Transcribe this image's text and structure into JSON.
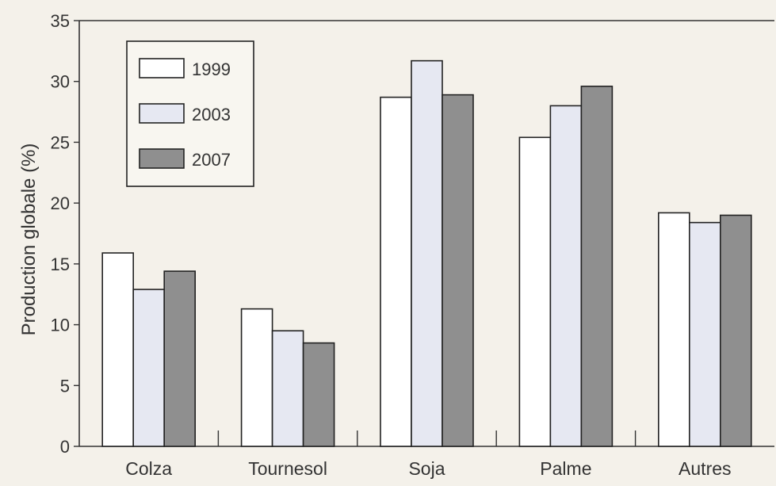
{
  "chart_data": {
    "type": "bar",
    "title": "",
    "xlabel": "",
    "ylabel": "Production globale (%)",
    "ylim": [
      0,
      35
    ],
    "yticks": [
      0,
      5,
      10,
      15,
      20,
      25,
      30,
      35
    ],
    "categories": [
      "Colza",
      "Tournesol",
      "Soja",
      "Palme",
      "Autres"
    ],
    "series": [
      {
        "name": "1999",
        "color": "#ffffff",
        "values": [
          15.9,
          11.3,
          28.7,
          25.4,
          19.2
        ]
      },
      {
        "name": "2003",
        "color": "#e6e8f2",
        "values": [
          12.9,
          9.5,
          31.7,
          28.0,
          18.4
        ]
      },
      {
        "name": "2007",
        "color": "#8f8f8f",
        "values": [
          14.4,
          8.5,
          28.9,
          29.6,
          19.0
        ]
      }
    ],
    "legend_position": "top-left",
    "grid": false
  }
}
